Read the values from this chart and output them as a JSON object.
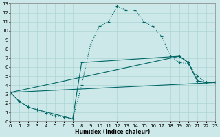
{
  "xlabel": "Humidex (Indice chaleur)",
  "xlim": [
    0,
    23
  ],
  "ylim": [
    0,
    13
  ],
  "xticks": [
    0,
    1,
    2,
    3,
    4,
    5,
    6,
    7,
    8,
    9,
    10,
    11,
    12,
    13,
    14,
    15,
    16,
    17,
    18,
    19,
    20,
    21,
    22,
    23
  ],
  "yticks": [
    0,
    1,
    2,
    3,
    4,
    5,
    6,
    7,
    8,
    9,
    10,
    11,
    12,
    13
  ],
  "bg_color": "#cce8e8",
  "grid_color": "#aad4d4",
  "line_color": "#006666",
  "line1": {
    "x": [
      0,
      1,
      2,
      3,
      4,
      5,
      6,
      7,
      8,
      9,
      10,
      11,
      12,
      13,
      14,
      15,
      16,
      17,
      18,
      19,
      20,
      21,
      22,
      23
    ],
    "y": [
      3.2,
      2.2,
      1.6,
      1.3,
      0.9,
      0.6,
      0.5,
      0.3,
      4.0,
      8.5,
      10.5,
      11.0,
      12.7,
      12.3,
      12.3,
      11.0,
      10.5,
      9.4,
      7.2,
      6.5,
      6.4,
      5.0,
      4.3,
      4.3
    ]
  },
  "line2": {
    "x": [
      0,
      1,
      2,
      3,
      7,
      8,
      19,
      20,
      21,
      22,
      23
    ],
    "y": [
      3.2,
      2.2,
      1.6,
      1.3,
      0.3,
      6.5,
      7.2,
      6.5,
      4.5,
      4.3,
      4.3
    ]
  },
  "line3": {
    "x": [
      0,
      19,
      20,
      21,
      22,
      23
    ],
    "y": [
      3.2,
      7.2,
      6.5,
      4.5,
      4.3,
      4.3
    ]
  },
  "line4": {
    "comment": "flattest line from (0,3.2) to (23,4.3)",
    "x": [
      0,
      23
    ],
    "y": [
      3.2,
      4.3
    ]
  }
}
